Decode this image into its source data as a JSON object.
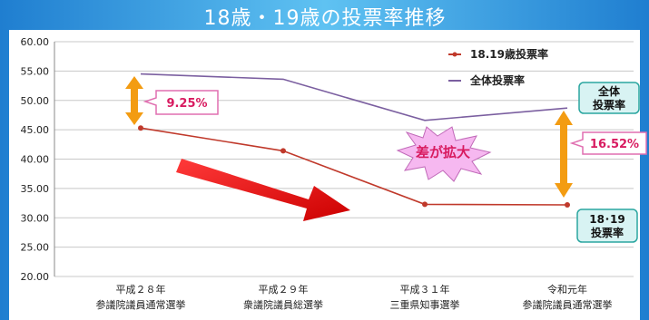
{
  "chart_data": {
    "type": "line",
    "title": "18歳・19歳の投票率推移",
    "categories": [
      [
        "平成２８年",
        "参議院議員通常選挙"
      ],
      [
        "平成２９年",
        "衆議院議員総選挙"
      ],
      [
        "平成３１年",
        "三重県知事選挙"
      ],
      [
        "令和元年",
        "参議院議員通常選挙"
      ]
    ],
    "ylim": [
      20,
      60
    ],
    "yticks": [
      "20.00",
      "25.00",
      "30.00",
      "35.00",
      "40.00",
      "45.00",
      "50.00",
      "55.00",
      "60.00"
    ],
    "grid": true,
    "legend_position": "top-right",
    "series": [
      {
        "name": "18.19歳投票率",
        "color": "#c0392b",
        "values": [
          45.3,
          41.4,
          32.3,
          32.2
        ]
      },
      {
        "name": "全体投票率",
        "color": "#7b5fa0",
        "values": [
          54.5,
          53.6,
          46.6,
          48.7
        ]
      }
    ],
    "annotations": {
      "gap_2016": "9.25%",
      "gap_2019": "16.52%",
      "burst": "差が拡大",
      "callout_total": [
        "全体",
        "投票率"
      ],
      "callout_youth": [
        "18･19",
        "投票率"
      ]
    }
  },
  "colors": {
    "background": "#3aa6e8",
    "title_band": "#2f8fd6",
    "callout_border": "#2aa6a0",
    "callout_fill": "#d8f3f3",
    "arrow_orange": "#f39c12",
    "big_arrow": "#ee1111",
    "burst_fill": "#f6b8f0",
    "burst_text": "#d81b60",
    "gap_text": "#d81b60"
  }
}
